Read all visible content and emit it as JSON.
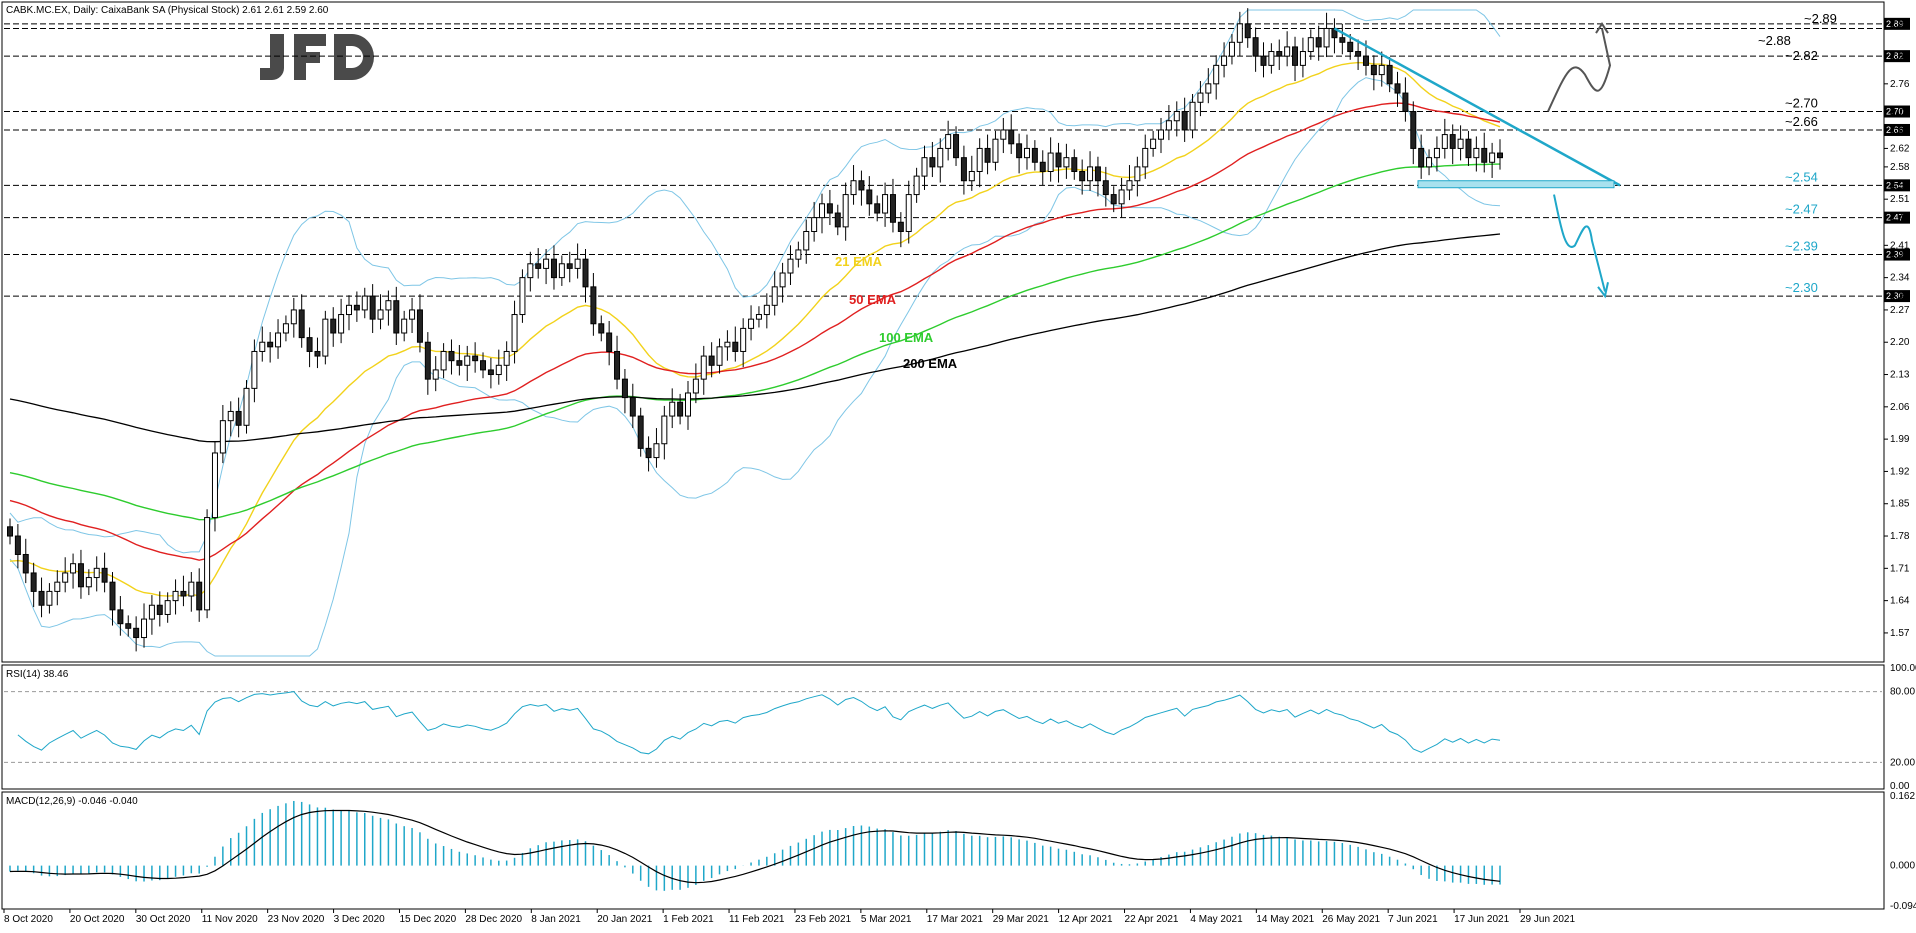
{
  "chart_data": [
    {
      "type": "candlestick",
      "title": "CABK.MC.EX, Daily:  CaixaBank SA (Physical Stock)  2.61 2.61 2.59 2.60",
      "ohlc_header": {
        "open": 2.61,
        "high": 2.61,
        "low": 2.59,
        "close": 2.6
      },
      "ylim": [
        1.52,
        2.92
      ],
      "y_ticks": [
        "2.89",
        "2.82",
        "2.76",
        "2.70",
        "2.66",
        "2.62",
        "2.58",
        "2.54",
        "2.51",
        "2.47",
        "2.41",
        "2.39",
        "2.34",
        "2.30",
        "2.27",
        "2.20",
        "2.13",
        "2.06",
        "1.99",
        "1.92",
        "1.85",
        "1.78",
        "1.71",
        "1.64",
        "1.57"
      ],
      "x_labels": [
        "8 Oct 2020",
        "20 Oct 2020",
        "30 Oct 2020",
        "11 Nov 2020",
        "23 Nov 2020",
        "3 Dec 2020",
        "15 Dec 2020",
        "28 Dec 2020",
        "8 Jan 2021",
        "20 Jan 2021",
        "1 Feb 2021",
        "11 Feb 2021",
        "23 Feb 2021",
        "5 Mar 2021",
        "17 Mar 2021",
        "29 Mar 2021",
        "12 Apr 2021",
        "22 Apr 2021",
        "4 May 2021",
        "14 May 2021",
        "26 May 2021",
        "7 Jun 2021",
        "17 Jun 2021",
        "29 Jun 2021"
      ],
      "levels": [
        {
          "label": "~2.89",
          "value": 2.89,
          "color": "#000000"
        },
        {
          "label": "~2.88",
          "value": 2.88,
          "color": "#000000"
        },
        {
          "label": "~2.82",
          "value": 2.82,
          "color": "#000000"
        },
        {
          "label": "~2.70",
          "value": 2.7,
          "color": "#000000"
        },
        {
          "label": "~2.66",
          "value": 2.66,
          "color": "#000000"
        },
        {
          "label": "~2.54",
          "value": 2.54,
          "color": "#1fa7c9"
        },
        {
          "label": "~2.47",
          "value": 2.47,
          "color": "#1fa7c9"
        },
        {
          "label": "~2.39",
          "value": 2.39,
          "color": "#1fa7c9"
        },
        {
          "label": "~2.30",
          "value": 2.3,
          "color": "#1fa7c9"
        }
      ],
      "price_tags": [
        "2.89",
        "2.82",
        "2.70",
        "2.66",
        "2.54",
        "2.47",
        "2.39",
        "2.30"
      ],
      "ema_labels": [
        {
          "name": "21 EMA",
          "color": "#f2d21b"
        },
        {
          "name": "50 EMA",
          "color": "#e02020"
        },
        {
          "name": "100 EMA",
          "color": "#2ecc2e"
        },
        {
          "name": "200 EMA",
          "color": "#000000"
        }
      ],
      "candles_close": [
        1.78,
        1.74,
        1.7,
        1.66,
        1.63,
        1.66,
        1.68,
        1.7,
        1.72,
        1.67,
        1.69,
        1.71,
        1.68,
        1.62,
        1.59,
        1.58,
        1.56,
        1.6,
        1.63,
        1.61,
        1.64,
        1.66,
        1.65,
        1.68,
        1.62,
        1.82,
        1.96,
        2.03,
        2.05,
        2.02,
        2.1,
        2.18,
        2.2,
        2.19,
        2.22,
        2.24,
        2.27,
        2.21,
        2.18,
        2.17,
        2.25,
        2.22,
        2.26,
        2.28,
        2.27,
        2.3,
        2.25,
        2.27,
        2.29,
        2.22,
        2.25,
        2.27,
        2.2,
        2.12,
        2.14,
        2.18,
        2.16,
        2.15,
        2.17,
        2.16,
        2.14,
        2.13,
        2.15,
        2.18,
        2.26,
        2.34,
        2.37,
        2.36,
        2.38,
        2.34,
        2.37,
        2.36,
        2.38,
        2.32,
        2.24,
        2.22,
        2.18,
        2.12,
        2.08,
        2.04,
        1.97,
        1.95,
        1.98,
        2.04,
        2.07,
        2.04,
        2.09,
        2.12,
        2.17,
        2.15,
        2.19,
        2.2,
        2.18,
        2.23,
        2.25,
        2.26,
        2.28,
        2.32,
        2.35,
        2.38,
        2.4,
        2.44,
        2.47,
        2.5,
        2.48,
        2.45,
        2.52,
        2.55,
        2.53,
        2.5,
        2.48,
        2.52,
        2.46,
        2.44,
        2.52,
        2.56,
        2.6,
        2.58,
        2.62,
        2.65,
        2.6,
        2.55,
        2.57,
        2.62,
        2.59,
        2.64,
        2.66,
        2.63,
        2.6,
        2.62,
        2.59,
        2.57,
        2.61,
        2.58,
        2.6,
        2.57,
        2.55,
        2.58,
        2.55,
        2.52,
        2.5,
        2.53,
        2.55,
        2.58,
        2.62,
        2.64,
        2.66,
        2.68,
        2.7,
        2.66,
        2.72,
        2.74,
        2.76,
        2.8,
        2.82,
        2.85,
        2.89,
        2.86,
        2.82,
        2.8,
        2.83,
        2.82,
        2.84,
        2.8,
        2.83,
        2.86,
        2.84,
        2.88,
        2.86,
        2.85,
        2.83,
        2.82,
        2.8,
        2.78,
        2.8,
        2.76,
        2.74,
        2.7,
        2.62,
        2.58,
        2.6,
        2.62,
        2.65,
        2.62,
        2.64,
        2.6,
        2.62,
        2.59,
        2.61,
        2.6
      ],
      "rsi": {
        "label": "RSI(14) 38.46",
        "ticks": [
          "100.00",
          "80.00",
          "20.00",
          "0.00"
        ],
        "ylim": [
          0,
          100
        ]
      },
      "macd": {
        "label": "MACD(12,26,9) -0.046 -0.040",
        "ticks": [
          "0.162",
          "0.000",
          "-0.094"
        ],
        "ylim": [
          -0.094,
          0.162
        ]
      }
    }
  ],
  "logo": {
    "text": "JFD"
  }
}
